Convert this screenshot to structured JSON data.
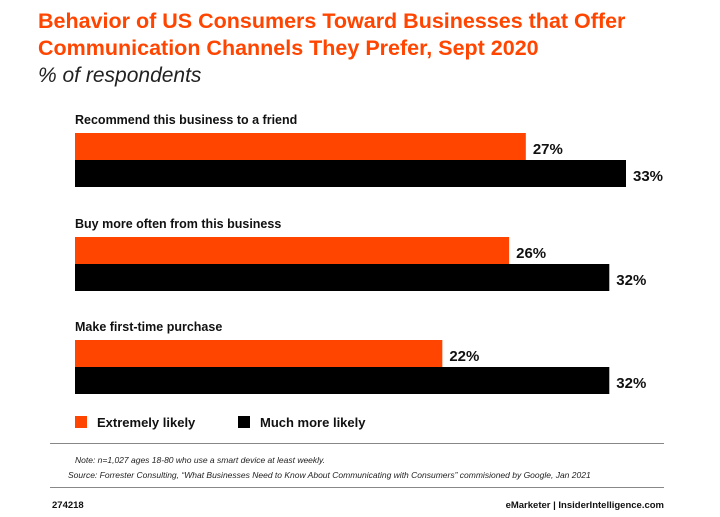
{
  "chart_data": {
    "type": "bar",
    "orientation": "horizontal",
    "title": "Behavior of US Consumers Toward Businesses that Offer Communication Channels They Prefer, Sept 2020",
    "subtitle": "% of respondents",
    "categories": [
      "Recommend this business to a friend",
      "Buy more often from this business",
      "Make first-time purchase"
    ],
    "series": [
      {
        "name": "Extremely likely",
        "color": "#ff4500",
        "values": [
          27,
          26,
          22
        ]
      },
      {
        "name": "Much more likely",
        "color": "#000000",
        "values": [
          33,
          32,
          32
        ]
      }
    ],
    "value_suffix": "%",
    "xlim": [
      0,
      33
    ],
    "grid": false,
    "legend_position": "bottom-left"
  },
  "note": "Note:  n=1,027 ages 18-80 who use a smart device at least weekly.",
  "source": "Source:  Forrester Consulting, “What Businesses Need to Know About Communicating with Consumers” commisioned by Google, Jan 2021",
  "chart_id": "274218",
  "brand": "eMarketer | InsiderIntelligence.com"
}
